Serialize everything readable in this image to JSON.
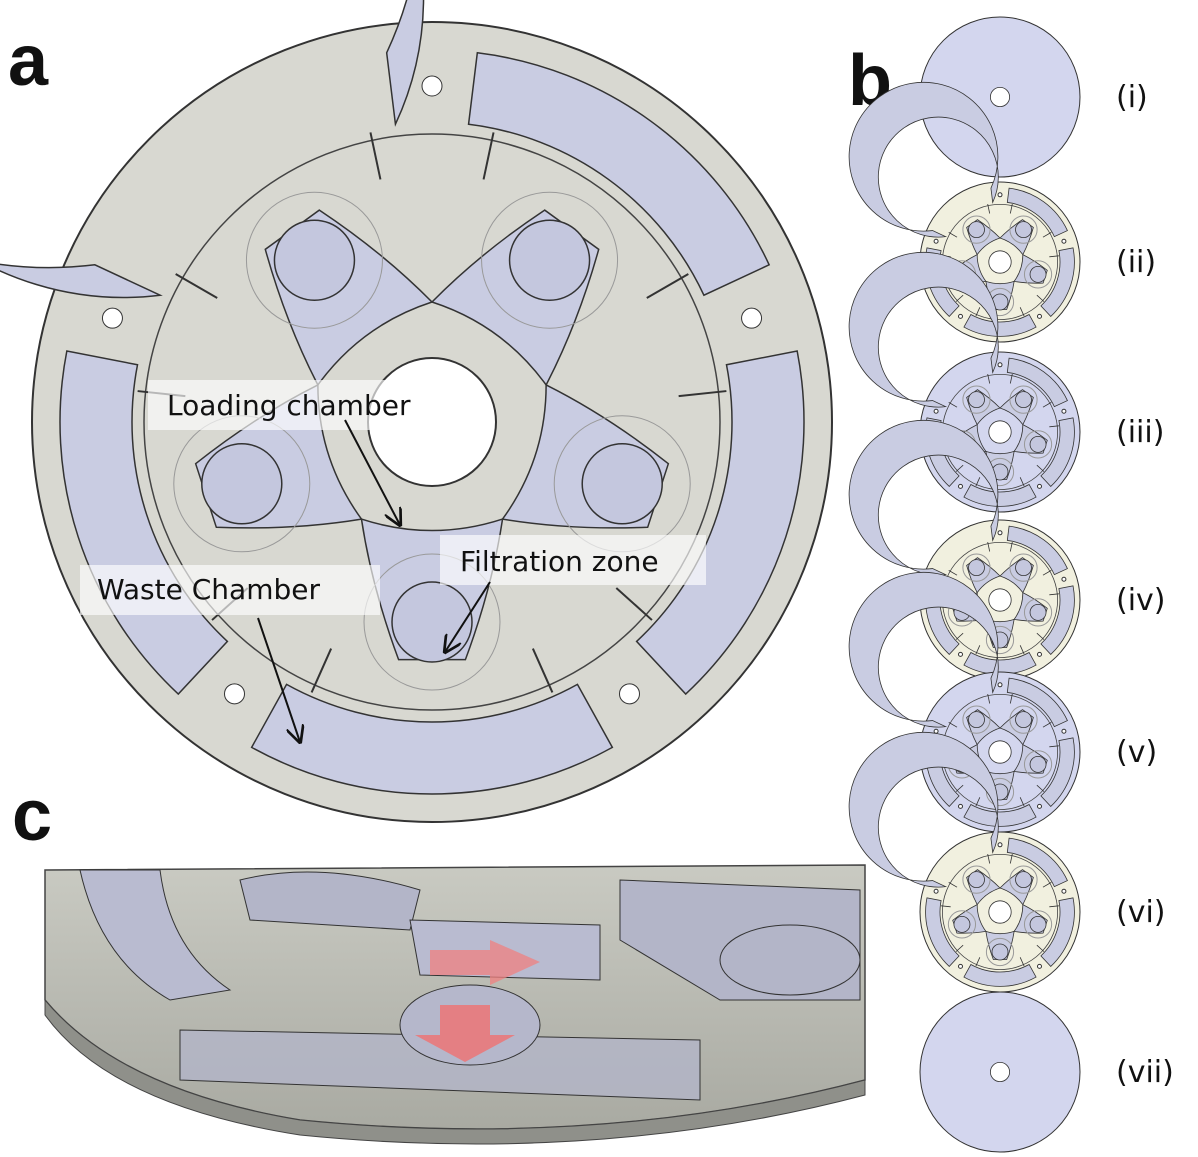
{
  "panels": {
    "a": {
      "label": "a",
      "annotations": [
        "Loading chamber",
        "Filtration zone",
        "Waste Chamber"
      ]
    },
    "b": {
      "label": "b",
      "layers": [
        "(i)",
        "(ii)",
        "(iii)",
        "(iv)",
        "(v)",
        "(vi)",
        "(vii)"
      ]
    },
    "c": {
      "label": "c"
    }
  }
}
